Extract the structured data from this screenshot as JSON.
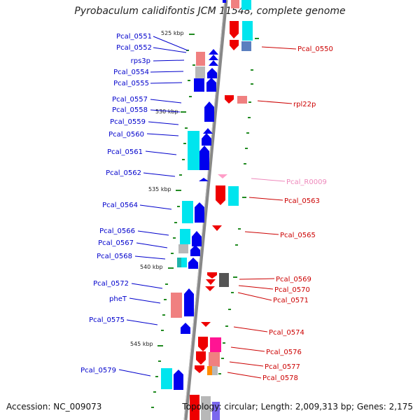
{
  "title": "Pyrobaculum calidifontis JCM 11548, complete genome",
  "footer": {
    "accession": "Accession: NC_009073",
    "topology": "Topology: circular; Length: 2,009,313 bp; Genes: 2,175"
  },
  "colors": {
    "forward_label": "#0000cc",
    "reverse_label": "#cc0000",
    "rna_label": "#ee88bb",
    "forward_arrow": "#0000ee",
    "reverse_arrow": "#ee0000",
    "cyan": "#00e5ee",
    "pink": "#f08080",
    "gray": "#b8b8b8",
    "dark_gray": "#555555",
    "magenta": "#ff1493",
    "orange": "#ff8c00",
    "rrna": "#ff9ec8",
    "purple": "#7b68ee",
    "tick": "#228b22",
    "backbone": "#888888"
  },
  "ticks": [
    "525 kbp",
    "530 kbp",
    "535 kbp",
    "540 kbp",
    "545 kbp"
  ],
  "genes_left": [
    "Pcal_0551",
    "Pcal_0552",
    "rps3p",
    "Pcal_0554",
    "Pcal_0555",
    "Pcal_0557",
    "Pcal_0558",
    "Pcal_0559",
    "Pcal_0560",
    "Pcal_0561",
    "Pcal_0562",
    "Pcal_0564",
    "Pcal_0566",
    "Pcal_0567",
    "Pcal_0568",
    "Pcal_0572",
    "pheT",
    "Pcal_0575",
    "Pcal_0579"
  ],
  "genes_right": [
    "Pcal_0550",
    "rpl22p",
    "Pcal_R0009",
    "Pcal_0563",
    "Pcal_0565",
    "Pcal_0569",
    "Pcal_0570",
    "Pcal_0571",
    "Pcal_0574",
    "Pcal_0576",
    "Pcal_0577",
    "Pcal_0578"
  ]
}
